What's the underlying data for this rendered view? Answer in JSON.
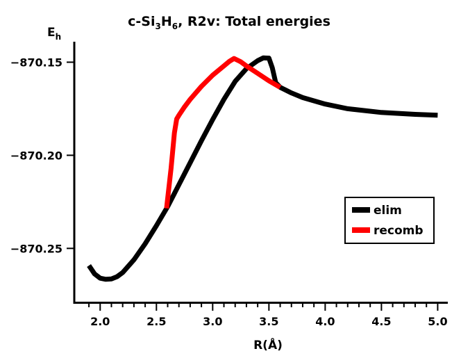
{
  "chart_data": {
    "type": "line",
    "title": {
      "prefix": "c-Si",
      "sub1": "3",
      "mid": "H",
      "sub2": "6",
      "suffix": ", R2v: Total energies"
    },
    "xlabel": "R(Å)",
    "ylabel": {
      "main": "E",
      "sub": "h"
    },
    "xlim": [
      1.77,
      5.09
    ],
    "ylim": [
      -870.279,
      -870.139
    ],
    "x_ticks": [
      2.0,
      2.5,
      3.0,
      3.5,
      4.0,
      4.5,
      5.0
    ],
    "x_tick_labels": [
      "2.0",
      "2.5",
      "3.0",
      "3.5",
      "4.0",
      "4.5",
      "5.0"
    ],
    "x_minor_step": 0.1,
    "y_ticks": [
      -870.15,
      -870.2,
      -870.25
    ],
    "y_tick_labels": [
      "−870.15",
      "−870.20",
      "−870.25"
    ],
    "grid": false,
    "legend_position": "right",
    "series": [
      {
        "name": "elim",
        "color": "#000000",
        "x": [
          1.9,
          1.95,
          2.0,
          2.05,
          2.1,
          2.15,
          2.2,
          2.3,
          2.4,
          2.5,
          2.6,
          2.7,
          2.8,
          2.9,
          3.0,
          3.1,
          3.2,
          3.3,
          3.4,
          3.45,
          3.5,
          3.53,
          3.56,
          3.6,
          3.7,
          3.8,
          4.0,
          4.2,
          4.5,
          4.8,
          5.0
        ],
        "y": [
          -870.2592,
          -870.2637,
          -870.266,
          -870.2666,
          -870.2664,
          -870.2652,
          -870.263,
          -870.2561,
          -870.2475,
          -870.2378,
          -870.2275,
          -870.2158,
          -870.204,
          -870.1922,
          -870.1808,
          -870.17,
          -870.1603,
          -870.1535,
          -870.1492,
          -870.1477,
          -870.1478,
          -870.153,
          -870.161,
          -870.1635,
          -870.1665,
          -870.169,
          -870.1725,
          -870.175,
          -870.177,
          -870.178,
          -870.1785
        ]
      },
      {
        "name": "recomb",
        "color": "#ff0000",
        "x": [
          2.59,
          2.63,
          2.66,
          2.68,
          2.7,
          2.75,
          2.8,
          2.9,
          3.0,
          3.1,
          3.15,
          3.19,
          3.25,
          3.3,
          3.4,
          3.5,
          3.6
        ],
        "y": [
          -870.2285,
          -870.207,
          -870.188,
          -870.1805,
          -870.1785,
          -870.174,
          -870.17,
          -870.163,
          -870.157,
          -870.152,
          -870.1495,
          -870.148,
          -870.1498,
          -870.152,
          -870.156,
          -870.16,
          -870.1635
        ]
      }
    ]
  }
}
